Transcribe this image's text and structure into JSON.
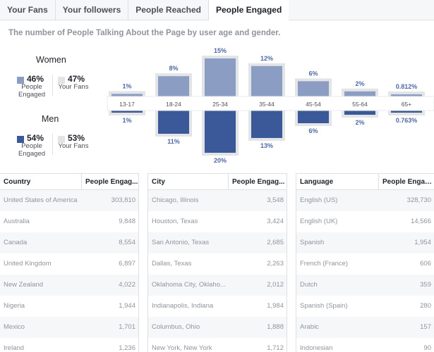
{
  "tabs": [
    {
      "label": "Your Fans",
      "active": false
    },
    {
      "label": "Your followers",
      "active": false
    },
    {
      "label": "People Reached",
      "active": false
    },
    {
      "label": "People Engaged",
      "active": true
    }
  ],
  "subtitle": "The number of People Talking About the Page by user age and gender.",
  "legend": {
    "women": {
      "title": "Women",
      "engaged_pct": "46%",
      "engaged_label": "People Engaged",
      "fans_pct": "47%",
      "fans_label": "Your Fans"
    },
    "men": {
      "title": "Men",
      "engaged_pct": "54%",
      "engaged_label": "People Engaged",
      "fans_pct": "53%",
      "fans_label": "Your Fans"
    }
  },
  "colors": {
    "women": "#8b9dc3",
    "men": "#3b5998",
    "fans": "#e3e4e6",
    "label": "#4e69a2"
  },
  "chart_data": {
    "type": "bar",
    "categories": [
      "13-17",
      "18-24",
      "25-34",
      "35-44",
      "45-54",
      "55-64",
      "65+"
    ],
    "series": [
      {
        "name": "Women",
        "values": [
          1,
          8,
          15,
          12,
          6,
          2,
          0.812
        ],
        "labels": [
          "1%",
          "8%",
          "15%",
          "12%",
          "6%",
          "2%",
          "0.812%"
        ]
      },
      {
        "name": "Men",
        "values": [
          1,
          11,
          20,
          13,
          6,
          2,
          0.763
        ],
        "labels": [
          "1%",
          "11%",
          "20%",
          "13%",
          "6%",
          "2%",
          "0.763%"
        ]
      }
    ]
  },
  "tables": [
    {
      "col1": "Country",
      "col2": "People Engag...",
      "rows": [
        [
          "United States of America",
          "303,810"
        ],
        [
          "Australia",
          "9,848"
        ],
        [
          "Canada",
          "8,554"
        ],
        [
          "United Kingdom",
          "6,897"
        ],
        [
          "New Zealand",
          "4,022"
        ],
        [
          "Nigeria",
          "1,944"
        ],
        [
          "Mexico",
          "1,701"
        ],
        [
          "Ireland",
          "1,236"
        ]
      ]
    },
    {
      "col1": "City",
      "col2": "People Engag...",
      "rows": [
        [
          "Chicago, Illinois",
          "3,548"
        ],
        [
          "Houston, Texas",
          "3,424"
        ],
        [
          "San Antonio, Texas",
          "2,685"
        ],
        [
          "Dallas, Texas",
          "2,263"
        ],
        [
          "Oklahoma City, Oklaho...",
          "2,012"
        ],
        [
          "Indianapolis, Indiana",
          "1,984"
        ],
        [
          "Columbus, Ohio",
          "1,888"
        ],
        [
          "New York, New York",
          "1,712"
        ]
      ]
    },
    {
      "col1": "Language",
      "col2": "People Engag...",
      "rows": [
        [
          "English (US)",
          "328,730"
        ],
        [
          "English (UK)",
          "14,566"
        ],
        [
          "Spanish",
          "1,954"
        ],
        [
          "French (France)",
          "606"
        ],
        [
          "Dutch",
          "359"
        ],
        [
          "Spanish (Spain)",
          "280"
        ],
        [
          "Arabic",
          "157"
        ],
        [
          "Indonesian",
          "90"
        ]
      ]
    }
  ]
}
